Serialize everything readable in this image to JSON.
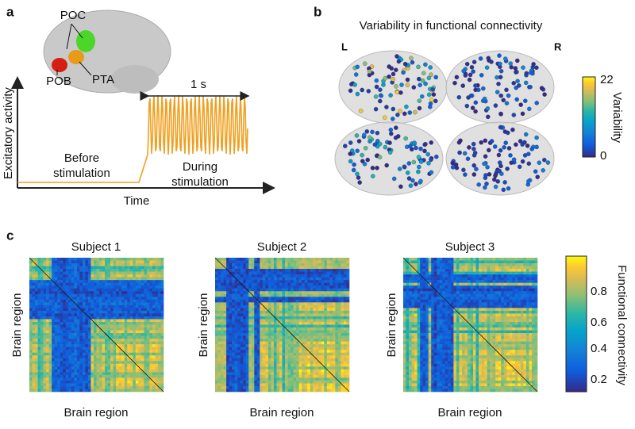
{
  "panel_a": {
    "label": "a",
    "regions": [
      "POC",
      "PTA",
      "POB"
    ],
    "duration": "1 s",
    "y_label": "Excitatory activity",
    "x_label": "Time",
    "before": [
      "Before",
      "stimulation"
    ],
    "during": [
      "During",
      "stimulation"
    ]
  },
  "panel_b": {
    "label": "b",
    "title": "Variability in functional connectivity",
    "left": "L",
    "right": "R",
    "colorbar": {
      "max": "22",
      "min": "0",
      "label": "Variability"
    }
  },
  "panel_c": {
    "label": "c",
    "subjects": [
      "Subject 1",
      "Subject 2",
      "Subject 3"
    ],
    "axis_label": "Brain region",
    "colorbar": {
      "ticks": [
        "0.8",
        "0.6",
        "0.4",
        "0.2"
      ],
      "label": "Functional connectivity"
    }
  }
}
